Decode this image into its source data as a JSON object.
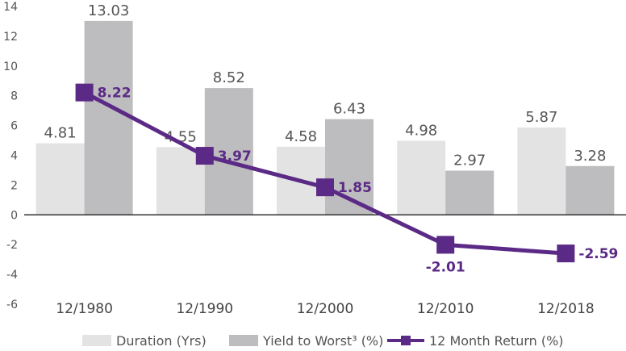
{
  "chart_data": {
    "type": "bar",
    "categories": [
      "12/1980",
      "12/1990",
      "12/2000",
      "12/2010",
      "12/2018"
    ],
    "series": [
      {
        "name": "Duration (Yrs)",
        "type": "bar",
        "color": "#e3e3e3",
        "values": [
          4.81,
          4.55,
          4.58,
          4.98,
          5.87
        ],
        "labels": [
          "4.81",
          "4.55",
          "4.58",
          "4.98",
          "5.87"
        ]
      },
      {
        "name": "Yield to Worst³ (%)",
        "type": "bar",
        "color": "#bdbcbe",
        "values": [
          13.03,
          8.52,
          6.43,
          2.97,
          3.28
        ],
        "labels": [
          "13.03",
          "8.52",
          "6.43",
          "2.97",
          "3.28"
        ]
      },
      {
        "name": "12 Month Return (%)",
        "type": "line",
        "color": "#5b2a86",
        "values": [
          8.22,
          3.97,
          1.85,
          -2.01,
          -2.59
        ],
        "labels": [
          "8.22",
          "3.97",
          "1.85",
          "-2.01",
          "-2.59"
        ]
      }
    ],
    "yticks": [
      "14",
      "12",
      "10",
      "8",
      "6",
      "4",
      "2",
      "0",
      "-2",
      "-4",
      "-6"
    ],
    "ylim": [
      -6,
      14
    ],
    "title": "",
    "xlabel": "",
    "ylabel": "",
    "grid": false,
    "legend": "bottom"
  }
}
